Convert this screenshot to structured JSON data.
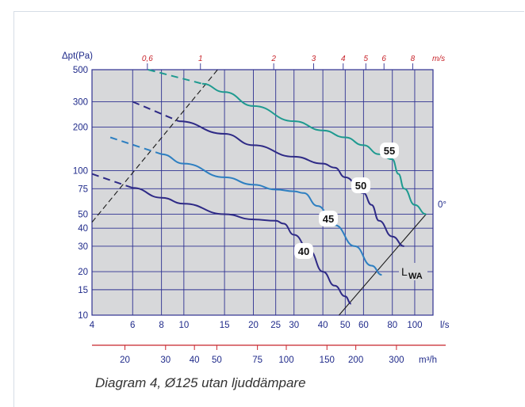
{
  "chart_data": {
    "type": "line",
    "y_axis_label": "Δpt(Pa)",
    "y_scale": "log",
    "ylim": [
      10,
      500
    ],
    "y_ticks": [
      10,
      15,
      20,
      30,
      40,
      50,
      75,
      100,
      200,
      300,
      500
    ],
    "x_scale": "log",
    "xlim": [
      4,
      120
    ],
    "x_ticks": [
      4,
      6,
      8,
      10,
      15,
      20,
      25,
      30,
      40,
      50,
      60,
      80,
      100
    ],
    "x_unit": "l/s",
    "x2_ticks": [
      20,
      30,
      40,
      50,
      75,
      100,
      150,
      200,
      300
    ],
    "x2_unit": "m³/h",
    "top_ticks": [
      {
        "label": "0,6",
        "x": 6.95
      },
      {
        "label": "1",
        "x": 11.8
      },
      {
        "label": "2",
        "x": 24.5
      },
      {
        "label": "3",
        "x": 36.5
      },
      {
        "label": "4",
        "x": 49
      },
      {
        "label": "5",
        "x": 61.4
      },
      {
        "label": "6",
        "x": 73.6
      },
      {
        "label": "8",
        "x": 98
      }
    ],
    "top_unit": "m/s",
    "series": [
      {
        "name": "40",
        "color": "#2e2a86",
        "dashed": [
          [
            4,
            95
          ],
          [
            6,
            76
          ]
        ],
        "points": [
          [
            6,
            76
          ],
          [
            8,
            65
          ],
          [
            10,
            59
          ],
          [
            15,
            50
          ],
          [
            20,
            46
          ],
          [
            25,
            45
          ],
          [
            27,
            43
          ],
          [
            30,
            36
          ],
          [
            35,
            28
          ],
          [
            40,
            20
          ],
          [
            45,
            16
          ],
          [
            50,
            13.5
          ],
          [
            53,
            12
          ]
        ]
      },
      {
        "name": "45",
        "color": "#2d7fc1",
        "dashed": [
          [
            4.8,
            170
          ],
          [
            8,
            130
          ]
        ],
        "points": [
          [
            8,
            130
          ],
          [
            10,
            112
          ],
          [
            15,
            90
          ],
          [
            20,
            80
          ],
          [
            25,
            74
          ],
          [
            30,
            72
          ],
          [
            33,
            70
          ],
          [
            38,
            57
          ],
          [
            45,
            42
          ],
          [
            55,
            30
          ],
          [
            65,
            22
          ],
          [
            72,
            19
          ]
        ]
      },
      {
        "name": "50",
        "color": "#2e2a86",
        "dashed": [
          [
            6,
            300
          ],
          [
            9.5,
            220
          ]
        ],
        "points": [
          [
            9.5,
            220
          ],
          [
            15,
            180
          ],
          [
            20,
            150
          ],
          [
            30,
            125
          ],
          [
            40,
            112
          ],
          [
            45,
            105
          ],
          [
            50,
            90
          ],
          [
            60,
            70
          ],
          [
            65,
            58
          ],
          [
            70,
            45
          ],
          [
            80,
            35
          ],
          [
            90,
            30
          ]
        ]
      },
      {
        "name": "55",
        "color": "#1e9a90",
        "dashed": [
          [
            7,
            500
          ],
          [
            12,
            400
          ]
        ],
        "points": [
          [
            12,
            400
          ],
          [
            15,
            350
          ],
          [
            20,
            280
          ],
          [
            30,
            220
          ],
          [
            40,
            190
          ],
          [
            50,
            170
          ],
          [
            60,
            150
          ],
          [
            70,
            130
          ],
          [
            80,
            120
          ],
          [
            85,
            95
          ],
          [
            90,
            75
          ],
          [
            100,
            58
          ],
          [
            112,
            50
          ]
        ]
      }
    ],
    "velocity_line": [
      [
        4,
        44
      ],
      [
        14,
        500
      ]
    ],
    "lwa_line": [
      [
        47,
        10
      ],
      [
        112,
        50
      ]
    ],
    "annotations": {
      "lwa": "L",
      "lwa_sub": "WA",
      "angle": "0°"
    }
  },
  "caption": "Diagram 4, Ø125 utan ljuddämpare",
  "colors": {
    "plot_bg": "#d7d8da",
    "grid": "#2e3191",
    "bottom_axis": "#c8242b",
    "top_tick_text": "#c8242b",
    "frame_border": "#d6dde6"
  }
}
